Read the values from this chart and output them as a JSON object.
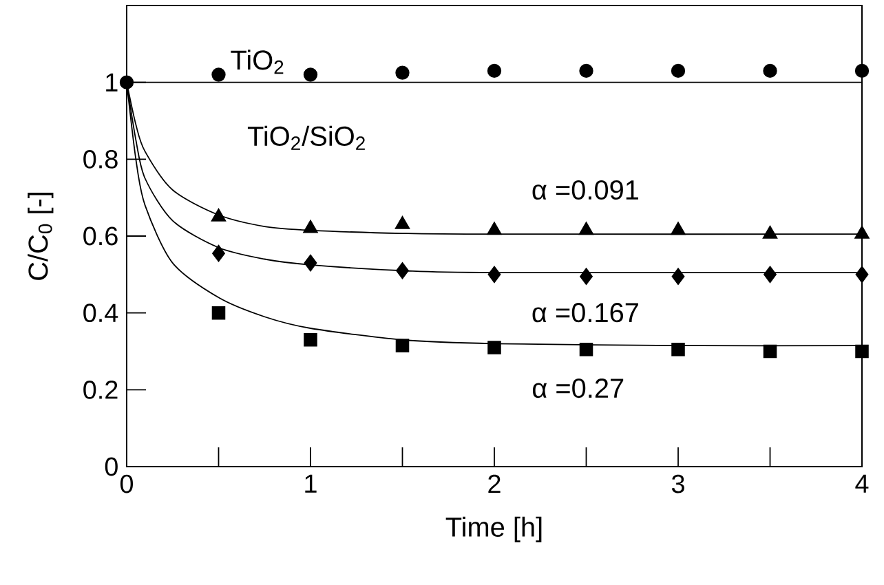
{
  "chart_data": {
    "type": "scatter",
    "xlabel": "Time [h]",
    "ylabel": "C/C$_{0}$ [-]",
    "xlim": [
      0,
      4
    ],
    "ylim": [
      0,
      1.2
    ],
    "xticks": [
      0,
      {
        "value": 0.5,
        "label": null
      },
      1,
      {
        "value": 1.5,
        "label": null
      },
      2,
      {
        "value": 2.5,
        "label": null
      },
      3,
      {
        "value": 3.5,
        "label": null
      },
      4
    ],
    "yticks": [
      0,
      0.2,
      0.4,
      0.6,
      0.8,
      1
    ],
    "grid": false,
    "annotations": [
      "TiO$_{2}$/SiO$_{2}$"
    ],
    "series": [
      {
        "name": "TiO$_{2}$",
        "marker": "circle",
        "color": "#000000",
        "x": [
          0,
          0.5,
          1,
          1.5,
          2,
          2.5,
          3,
          3.5,
          4
        ],
        "values": [
          1,
          1.02,
          1.02,
          1.025,
          1.03,
          1.03,
          1.03,
          1.03,
          1.03
        ]
      },
      {
        "name": "α =0.091",
        "marker": "triangle",
        "color": "#000000",
        "x": [
          0.5,
          1,
          1.5,
          2,
          2.5,
          3,
          3.5,
          4
        ],
        "values": [
          0.65,
          0.62,
          0.63,
          0.615,
          0.615,
          0.615,
          0.605,
          0.605
        ]
      },
      {
        "name": "α =0.167",
        "marker": "diamond",
        "color": "#000000",
        "x": [
          0.5,
          1,
          1.5,
          2,
          2.5,
          3,
          3.5,
          4
        ],
        "values": [
          0.555,
          0.53,
          0.51,
          0.5,
          0.495,
          0.495,
          0.5,
          0.5
        ]
      },
      {
        "name": "α =0.27",
        "marker": "square",
        "color": "#000000",
        "x": [
          0.5,
          1,
          1.5,
          2,
          2.5,
          3,
          3.5,
          4
        ],
        "values": [
          0.4,
          0.33,
          0.315,
          0.31,
          0.305,
          0.305,
          0.3,
          0.3
        ]
      },
      {
        "type": "line",
        "color": "#000000",
        "x": [
          0,
          4
        ],
        "values": [
          1,
          1
        ]
      },
      {
        "type": "line",
        "color": "#000000",
        "x": [
          0,
          0.05,
          0.1,
          0.25,
          0.5,
          0.75,
          1,
          1.5,
          2,
          4
        ],
        "values": [
          1,
          0.89,
          0.82,
          0.72,
          0.655,
          0.625,
          0.615,
          0.607,
          0.605,
          0.605
        ]
      },
      {
        "type": "line",
        "color": "#000000",
        "x": [
          0,
          0.05,
          0.1,
          0.25,
          0.5,
          0.75,
          1,
          1.5,
          2,
          4
        ],
        "values": [
          1,
          0.85,
          0.75,
          0.64,
          0.57,
          0.54,
          0.525,
          0.51,
          0.505,
          0.505
        ]
      },
      {
        "type": "line",
        "color": "#000000",
        "x": [
          0,
          0.05,
          0.1,
          0.25,
          0.5,
          0.75,
          1,
          1.5,
          2,
          3,
          4
        ],
        "values": [
          1,
          0.8,
          0.68,
          0.53,
          0.44,
          0.39,
          0.36,
          0.33,
          0.32,
          0.315,
          0.315
        ]
      }
    ]
  }
}
